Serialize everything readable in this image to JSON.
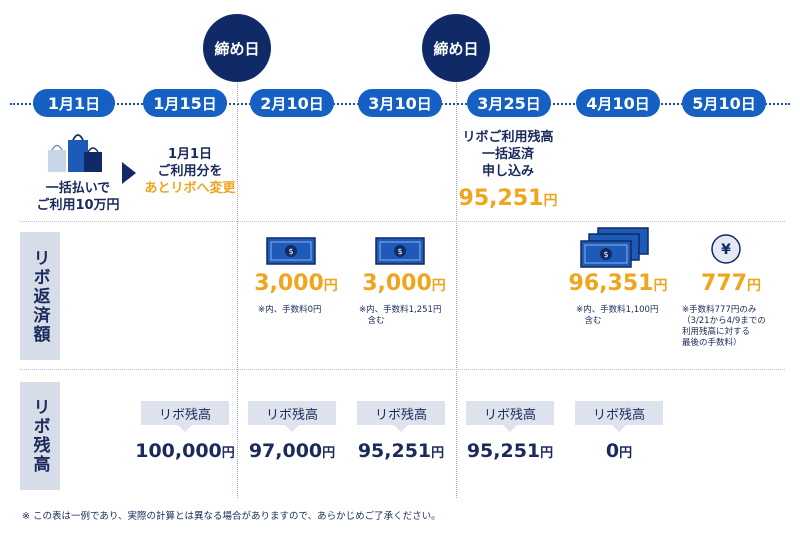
{
  "closing_badges": [
    "締め日",
    "締め日"
  ],
  "dates": [
    {
      "month": "1",
      "month_unit": "月",
      "day": "1",
      "day_unit": "日"
    },
    {
      "month": "1",
      "month_unit": "月",
      "day": "15",
      "day_unit": "日"
    },
    {
      "month": "2",
      "month_unit": "月",
      "day": "10",
      "day_unit": "日"
    },
    {
      "month": "3",
      "month_unit": "月",
      "day": "10",
      "day_unit": "日"
    },
    {
      "month": "3",
      "month_unit": "月",
      "day": "25",
      "day_unit": "日"
    },
    {
      "month": "4",
      "month_unit": "月",
      "day": "10",
      "day_unit": "日"
    },
    {
      "month": "5",
      "month_unit": "月",
      "day": "10",
      "day_unit": "日"
    }
  ],
  "events": {
    "jan1_line1": "一括払いで",
    "jan1_line2": "ご利用10万円",
    "jan15_line1": "1月1日",
    "jan15_line2": "ご利用分を",
    "jan15_line3": "あとリボへ変更",
    "mar25_line1": "リボご利用残高",
    "mar25_line2": "一括返済",
    "mar25_line3": "申し込み",
    "mar25_amount": "95,251",
    "mar25_yen": "円"
  },
  "row_headers": {
    "repayment": "リボ返済額",
    "balance": "リボ残高"
  },
  "repayments": [
    {
      "amount": "3,000",
      "yen": "円",
      "note": "※内、手数料0円"
    },
    {
      "amount": "3,000",
      "yen": "円",
      "note": "※内、手数料1,251円\n　含む"
    },
    {
      "amount": "96,351",
      "yen": "円",
      "note": "※内、手数料1,100円\n　含む"
    },
    {
      "amount": "777",
      "yen": "円",
      "note": "※手数料777円のみ\n（3/21から4/9までの\n利用残高に対する\n最後の手数料）"
    }
  ],
  "balances": [
    {
      "label": "リボ残高",
      "amount": "100,000",
      "yen": "円"
    },
    {
      "label": "リボ残高",
      "amount": "97,000",
      "yen": "円"
    },
    {
      "label": "リボ残高",
      "amount": "95,251",
      "yen": "円"
    },
    {
      "label": "リボ残高",
      "amount": "95,251",
      "yen": "円"
    },
    {
      "label": "リボ残高",
      "amount": "0",
      "yen": "円"
    }
  ],
  "yen_coin_symbol": "¥",
  "footnote": "※ この表は一例であり、実際の計算とは異なる場合がありますので、あらかじめご了承ください。",
  "colors": {
    "navy": "#0f2a66",
    "blue": "#1560c2",
    "orange": "#f0a51e",
    "gray": "#d6dce8"
  }
}
